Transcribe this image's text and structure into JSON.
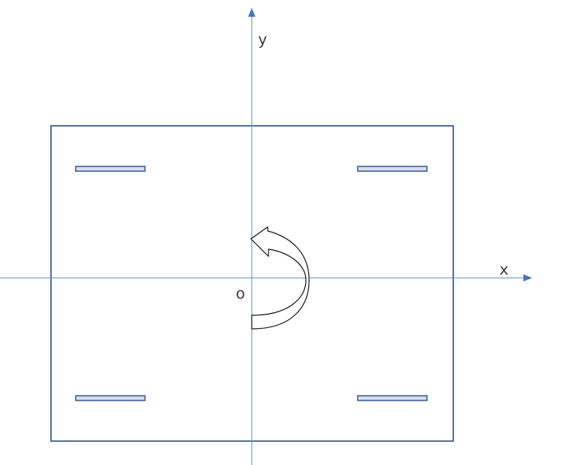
{
  "axes": {
    "x_label": "x",
    "y_label": "y",
    "origin_label": "o",
    "color": "#5b8fd6",
    "arrow_color": "#4472c4"
  },
  "frame": {
    "stroke_color": "#2f528f"
  },
  "slots": {
    "count": 4,
    "fill_color": "#d6dcf0",
    "stroke_color": "#2f528f",
    "positions": [
      "top-left",
      "top-right",
      "bottom-left",
      "bottom-right"
    ]
  },
  "rotation": {
    "direction": "counterclockwise",
    "icon": "rotate-counterclockwise-arrow-icon"
  }
}
